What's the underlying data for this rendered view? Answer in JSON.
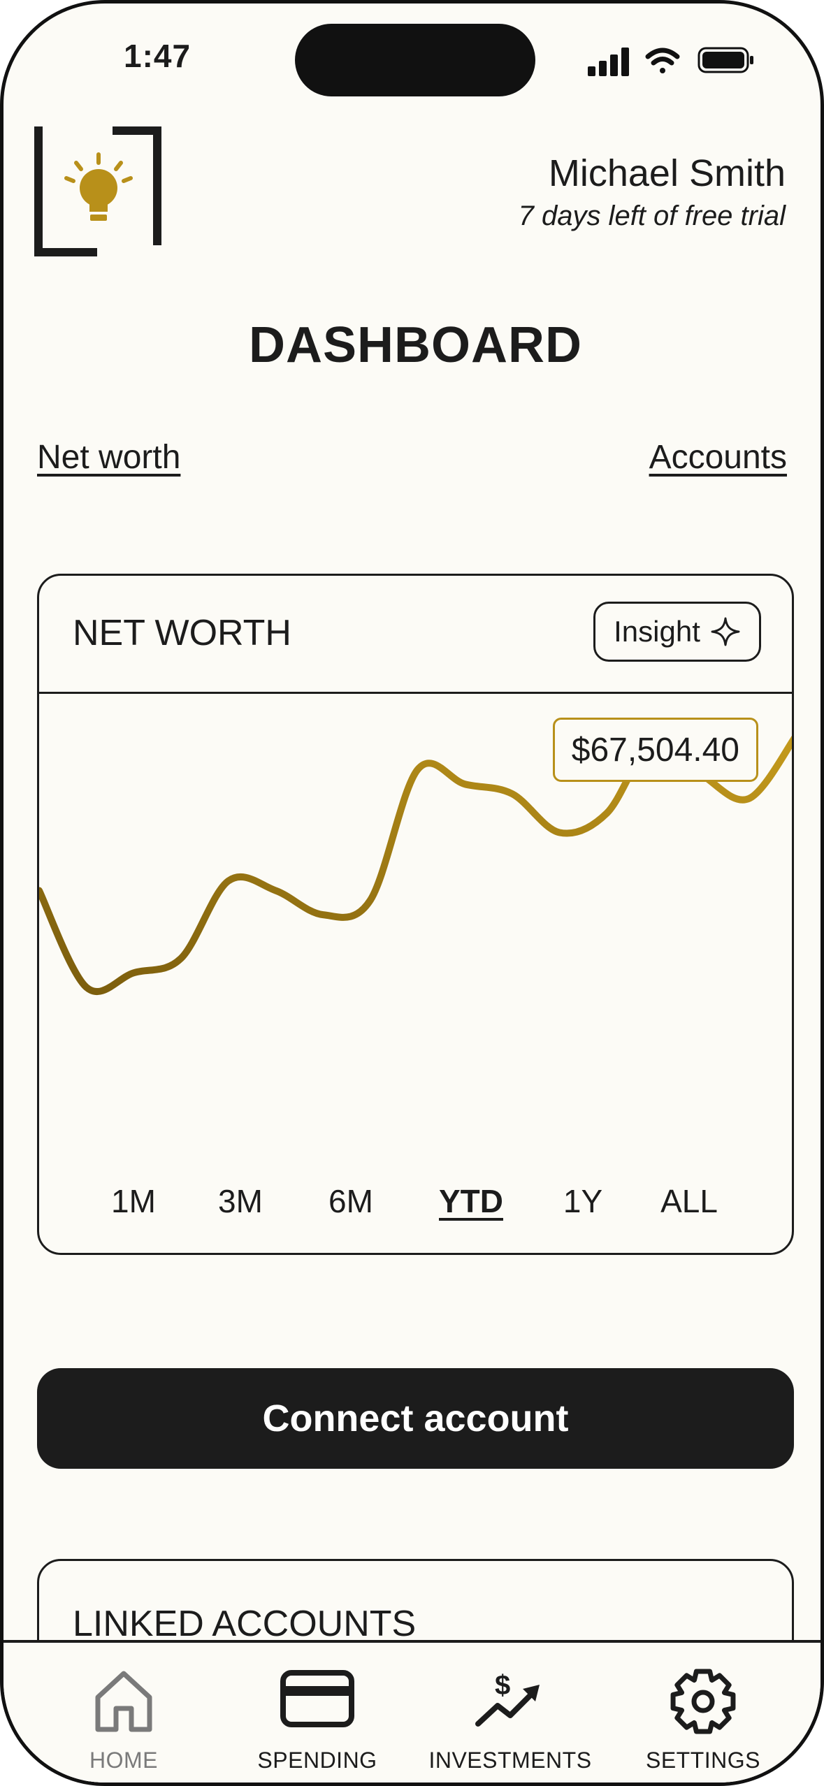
{
  "status_bar": {
    "time": "1:47"
  },
  "header": {
    "user_name": "Michael Smith",
    "trial_text": "7 days left of free trial"
  },
  "page_title": "DASHBOARD",
  "links": {
    "net_worth": "Net worth",
    "accounts": "Accounts"
  },
  "net_worth_card": {
    "title": "NET WORTH",
    "insight_label": "Insight",
    "current_value": "$67,504.40",
    "ranges": [
      "1M",
      "3M",
      "6M",
      "YTD",
      "1Y",
      "ALL"
    ],
    "selected_range": "YTD"
  },
  "chart_data": {
    "type": "line",
    "x": [
      0,
      1,
      2,
      3,
      4,
      5,
      6,
      7,
      8,
      9,
      10,
      11,
      12,
      13,
      14,
      15,
      16
    ],
    "values": [
      50,
      30,
      33,
      36,
      52,
      50,
      45,
      48,
      75,
      72,
      70,
      62,
      66,
      81,
      74,
      69,
      82
    ],
    "line_color": "#a07e14"
  },
  "connect_button_label": "Connect account",
  "linked_accounts": {
    "title": "LINKED ACCOUNTS"
  },
  "tab_bar": {
    "items": [
      {
        "label": "HOME",
        "icon": "home-icon"
      },
      {
        "label": "SPENDING",
        "icon": "credit-card-icon"
      },
      {
        "label": "INVESTMENTS",
        "icon": "investment-chart-icon"
      },
      {
        "label": "SETTINGS",
        "icon": "gear-icon"
      }
    ]
  },
  "colors": {
    "accent": "#b8901a",
    "background": "#fcfbf6",
    "ink": "#1c1c1c"
  }
}
